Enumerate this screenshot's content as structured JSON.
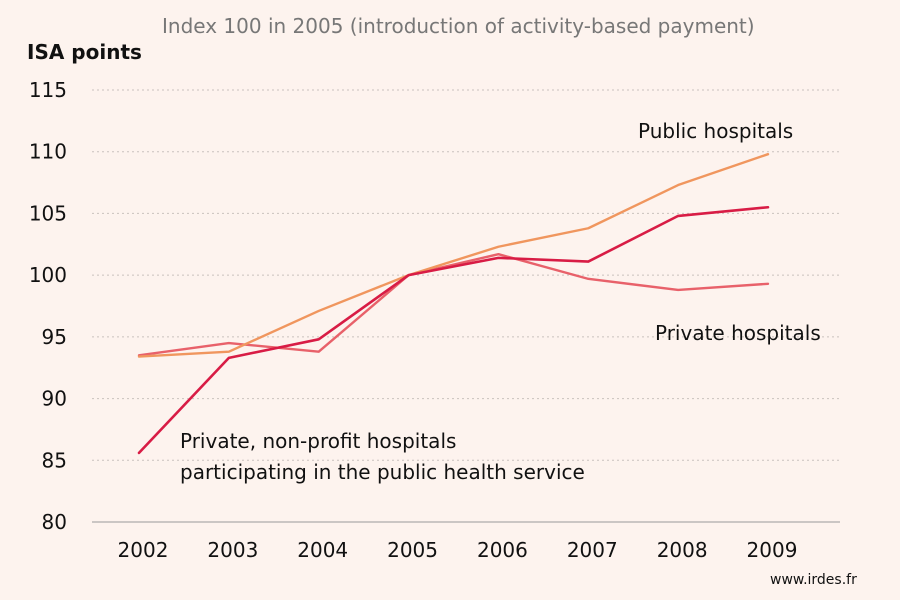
{
  "chart_data": {
    "type": "line",
    "title": "Index 100 in 2005 (introduction of activity-based payment)",
    "ylabel": "ISA points",
    "xlabel": "",
    "categories": [
      "2002",
      "2003",
      "2004",
      "2005",
      "2006",
      "2007",
      "2008",
      "2009"
    ],
    "ylim": [
      80,
      115
    ],
    "yticks": [
      "80",
      "85",
      "90",
      "95",
      "100",
      "105",
      "110",
      "115"
    ],
    "grid": true,
    "series": [
      {
        "name": "Public hospitals",
        "color": "#f0965e",
        "values": [
          93.4,
          93.8,
          97.1,
          100,
          102.3,
          103.8,
          107.3,
          109.8
        ]
      },
      {
        "name": "Private hospitals",
        "color": "#e8616a",
        "values": [
          93.5,
          94.5,
          93.8,
          100,
          101.7,
          99.7,
          98.8,
          99.3
        ]
      },
      {
        "name": "Private, non-profit hospitals participating in the public health service",
        "color": "#d81c45",
        "values": [
          85.6,
          93.3,
          94.8,
          100,
          101.4,
          101.1,
          104.8,
          105.5
        ]
      }
    ],
    "annotations": {
      "public": "Public hospitals",
      "private": "Private hospitals",
      "nonprofit_line1": "Private, non-profit hospitals",
      "nonprofit_line2": "participating in the public health service"
    },
    "credit": "www.irdes.fr"
  }
}
